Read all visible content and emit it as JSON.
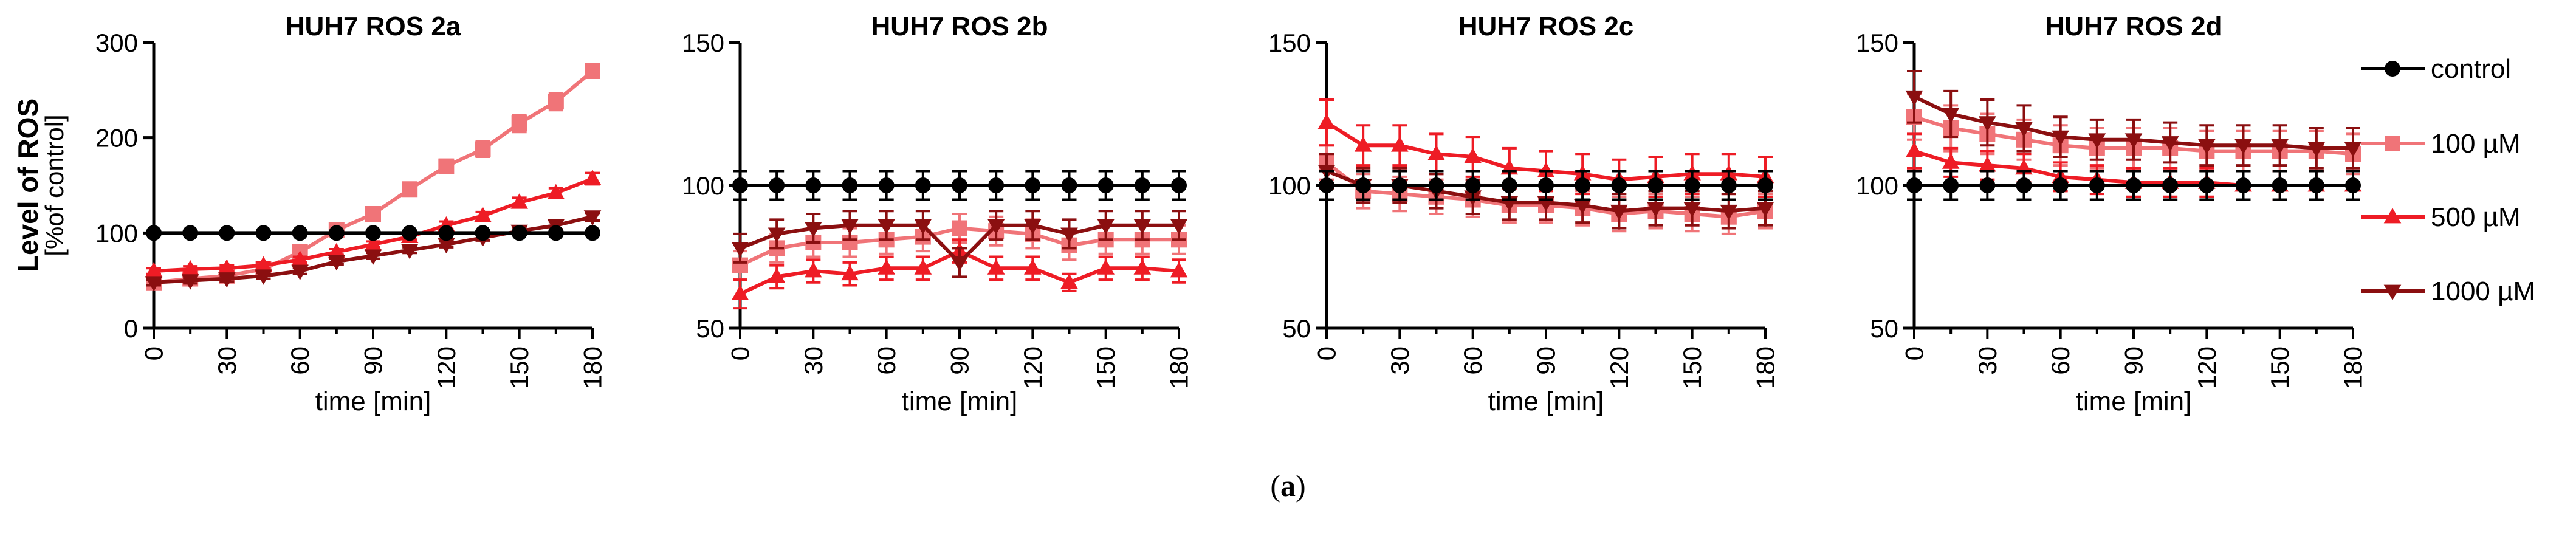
{
  "figure": {
    "caption_open": "(",
    "caption_letter": "a",
    "caption_close": ")",
    "ylabel_line1": "Level of ROS",
    "ylabel_line2": "[%of control]",
    "legend": [
      {
        "name": "control",
        "color": "#000000",
        "marker": "circle"
      },
      {
        "name": "100 µM",
        "color": "#f07478",
        "marker": "square"
      },
      {
        "name": "500 µM",
        "color": "#ee1c25",
        "marker": "triangle-up"
      },
      {
        "name": "1000 µM",
        "color": "#8b0f10",
        "marker": "triangle-down"
      }
    ]
  },
  "chart_data": [
    {
      "type": "line",
      "title": "HUH7 ROS 2a",
      "xlabel": "time [min]",
      "ylabel": "Level of ROS [%of control]",
      "x": [
        0,
        15,
        30,
        45,
        60,
        75,
        90,
        105,
        120,
        135,
        150,
        165,
        180
      ],
      "xticks": [
        0,
        30,
        60,
        90,
        120,
        150,
        180
      ],
      "yticks": [
        0,
        100,
        200,
        300
      ],
      "xlim": [
        0,
        180
      ],
      "ylim": [
        0,
        300
      ],
      "series": [
        {
          "name": "control",
          "values": [
            100,
            100,
            100,
            100,
            100,
            100,
            100,
            100,
            100,
            100,
            100,
            100,
            100
          ],
          "err": [
            2,
            2,
            2,
            2,
            2,
            2,
            2,
            2,
            2,
            2,
            2,
            2,
            2
          ]
        },
        {
          "name": "100 µM",
          "values": [
            48,
            52,
            55,
            62,
            80,
            103,
            120,
            146,
            170,
            188,
            215,
            238,
            270
          ],
          "err": [
            3,
            3,
            3,
            3,
            4,
            5,
            5,
            6,
            7,
            8,
            9,
            9,
            6
          ]
        },
        {
          "name": "500 µM",
          "values": [
            60,
            62,
            63,
            66,
            72,
            80,
            88,
            96,
            108,
            118,
            132,
            142,
            157
          ],
          "err": [
            3,
            3,
            3,
            3,
            3,
            3,
            3,
            3,
            4,
            4,
            5,
            5,
            6
          ]
        },
        {
          "name": "1000 µM",
          "values": [
            48,
            50,
            52,
            55,
            60,
            70,
            76,
            82,
            88,
            95,
            102,
            108,
            117
          ],
          "err": [
            3,
            3,
            3,
            3,
            3,
            3,
            3,
            3,
            3,
            3,
            4,
            4,
            4
          ]
        }
      ]
    },
    {
      "type": "line",
      "title": "HUH7 ROS 2b",
      "xlabel": "time [min]",
      "x": [
        0,
        15,
        30,
        45,
        60,
        75,
        90,
        105,
        120,
        135,
        150,
        165,
        180
      ],
      "xticks": [
        0,
        30,
        60,
        90,
        120,
        150,
        180
      ],
      "yticks": [
        50,
        100,
        150
      ],
      "xlim": [
        0,
        180
      ],
      "ylim": [
        50,
        150
      ],
      "series": [
        {
          "name": "control",
          "values": [
            100,
            100,
            100,
            100,
            100,
            100,
            100,
            100,
            100,
            100,
            100,
            100,
            100
          ],
          "err": [
            5,
            5,
            5,
            5,
            5,
            5,
            5,
            5,
            5,
            5,
            5,
            5,
            5
          ]
        },
        {
          "name": "100 µM",
          "values": [
            72,
            78,
            80,
            80,
            81,
            82,
            85,
            84,
            83,
            79,
            81,
            81,
            81
          ],
          "err": [
            5,
            5,
            5,
            5,
            5,
            5,
            5,
            5,
            5,
            5,
            5,
            5,
            5
          ]
        },
        {
          "name": "500 µM",
          "values": [
            62,
            68,
            70,
            69,
            71,
            71,
            77,
            71,
            71,
            66,
            71,
            71,
            70
          ],
          "err": [
            5,
            4,
            4,
            4,
            4,
            4,
            4,
            4,
            4,
            3,
            4,
            4,
            4
          ]
        },
        {
          "name": "1000 µM",
          "values": [
            78,
            83,
            85,
            86,
            86,
            86,
            73,
            86,
            86,
            83,
            86,
            86,
            86
          ],
          "err": [
            5,
            5,
            5,
            5,
            5,
            5,
            5,
            5,
            5,
            5,
            5,
            5,
            5
          ]
        }
      ]
    },
    {
      "type": "line",
      "title": "HUH7 ROS 2c",
      "xlabel": "time [min]",
      "x": [
        0,
        15,
        30,
        45,
        60,
        75,
        90,
        105,
        120,
        135,
        150,
        165,
        180
      ],
      "xticks": [
        0,
        30,
        60,
        90,
        120,
        150,
        180
      ],
      "yticks": [
        50,
        100,
        150
      ],
      "xlim": [
        0,
        180
      ],
      "ylim": [
        50,
        150
      ],
      "series": [
        {
          "name": "control",
          "values": [
            100,
            100,
            100,
            100,
            100,
            100,
            100,
            100,
            100,
            100,
            100,
            100,
            100
          ],
          "err": [
            5,
            5,
            5,
            5,
            5,
            5,
            5,
            5,
            5,
            5,
            5,
            5,
            5
          ]
        },
        {
          "name": "100 µM",
          "values": [
            108,
            98,
            97,
            96,
            95,
            93,
            93,
            92,
            90,
            91,
            90,
            89,
            91
          ],
          "err": [
            6,
            6,
            6,
            6,
            6,
            6,
            6,
            6,
            6,
            6,
            6,
            6,
            6
          ]
        },
        {
          "name": "500 µM",
          "values": [
            122,
            114,
            114,
            111,
            110,
            106,
            105,
            104,
            102,
            103,
            104,
            104,
            103
          ],
          "err": [
            8,
            7,
            7,
            7,
            7,
            7,
            7,
            7,
            7,
            7,
            7,
            7,
            7
          ]
        },
        {
          "name": "1000 µM",
          "values": [
            105,
            100,
            100,
            98,
            96,
            94,
            94,
            93,
            91,
            92,
            92,
            91,
            92
          ],
          "err": [
            6,
            6,
            6,
            6,
            6,
            6,
            6,
            6,
            6,
            6,
            6,
            6,
            6
          ]
        }
      ]
    },
    {
      "type": "line",
      "title": "HUH7 ROS 2d",
      "xlabel": "time [min]",
      "x": [
        0,
        15,
        30,
        45,
        60,
        75,
        90,
        105,
        120,
        135,
        150,
        165,
        180
      ],
      "xticks": [
        0,
        30,
        60,
        90,
        120,
        150,
        180
      ],
      "yticks": [
        50,
        100,
        150
      ],
      "xlim": [
        0,
        180
      ],
      "ylim": [
        50,
        150
      ],
      "series": [
        {
          "name": "control",
          "values": [
            100,
            100,
            100,
            100,
            100,
            100,
            100,
            100,
            100,
            100,
            100,
            100,
            100
          ],
          "err": [
            5,
            5,
            5,
            5,
            5,
            5,
            5,
            5,
            5,
            5,
            5,
            5,
            5
          ]
        },
        {
          "name": "100 µM",
          "values": [
            124,
            120,
            118,
            116,
            114,
            113,
            113,
            113,
            112,
            112,
            112,
            112,
            111
          ],
          "err": [
            8,
            8,
            7,
            7,
            7,
            7,
            7,
            7,
            7,
            7,
            7,
            7,
            7
          ]
        },
        {
          "name": "500 µM",
          "values": [
            112,
            108,
            107,
            106,
            103,
            102,
            101,
            101,
            101,
            100,
            100,
            100,
            100
          ],
          "err": [
            6,
            5,
            5,
            5,
            5,
            5,
            5,
            5,
            5,
            5,
            5,
            5,
            5
          ]
        },
        {
          "name": "1000 µM",
          "values": [
            131,
            125,
            122,
            120,
            117,
            116,
            116,
            115,
            114,
            114,
            114,
            113,
            113
          ],
          "err": [
            9,
            8,
            8,
            8,
            7,
            7,
            7,
            7,
            7,
            7,
            7,
            7,
            7
          ]
        }
      ]
    }
  ]
}
